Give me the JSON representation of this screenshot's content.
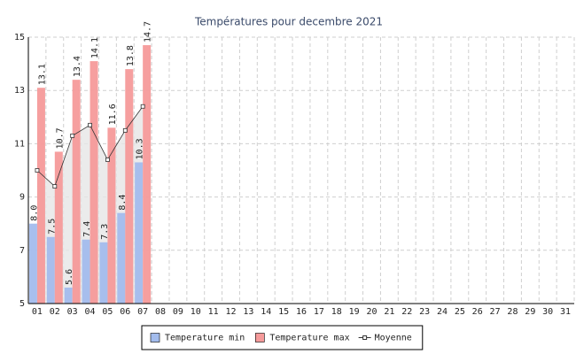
{
  "chart_data": {
    "type": "bar",
    "title": "Températures pour decembre 2021",
    "categories": [
      "01",
      "02",
      "03",
      "04",
      "05",
      "06",
      "07",
      "08",
      "09",
      "10",
      "11",
      "12",
      "13",
      "14",
      "15",
      "16",
      "17",
      "18",
      "19",
      "20",
      "21",
      "22",
      "23",
      "24",
      "25",
      "26",
      "27",
      "28",
      "29",
      "30",
      "31"
    ],
    "series": [
      {
        "name": "Temperature min",
        "color": "#a3bced",
        "values": [
          8.0,
          7.5,
          5.6,
          7.4,
          7.3,
          8.4,
          10.3,
          null,
          null,
          null,
          null,
          null,
          null,
          null,
          null,
          null,
          null,
          null,
          null,
          null,
          null,
          null,
          null,
          null,
          null,
          null,
          null,
          null,
          null,
          null,
          null
        ],
        "value_labels": [
          "8.0",
          "7.5",
          "5.6",
          "7.4",
          "7.3",
          "8.4",
          "10.3",
          null,
          null,
          null,
          null,
          null,
          null,
          null,
          null,
          null,
          null,
          null,
          null,
          null,
          null,
          null,
          null,
          null,
          null,
          null,
          null,
          null,
          null,
          null,
          null
        ]
      },
      {
        "name": "Temperature max",
        "color": "#f59a9a",
        "values": [
          13.1,
          10.7,
          13.4,
          14.1,
          11.6,
          13.8,
          14.7,
          null,
          null,
          null,
          null,
          null,
          null,
          null,
          null,
          null,
          null,
          null,
          null,
          null,
          null,
          null,
          null,
          null,
          null,
          null,
          null,
          null,
          null,
          null,
          null
        ]
      },
      {
        "name": "Moyenne",
        "color": "#333333",
        "type": "line",
        "values": [
          10.0,
          9.4,
          11.3,
          11.7,
          10.4,
          11.5,
          12.4,
          null,
          null,
          null,
          null,
          null,
          null,
          null,
          null,
          null,
          null,
          null,
          null,
          null,
          null,
          null,
          null,
          null,
          null,
          null,
          null,
          null,
          null,
          null,
          null
        ]
      }
    ],
    "ylim": [
      5,
      15
    ],
    "yticks": [
      5,
      7,
      9,
      11,
      13,
      15
    ],
    "grid": true,
    "legend": "bottom"
  }
}
